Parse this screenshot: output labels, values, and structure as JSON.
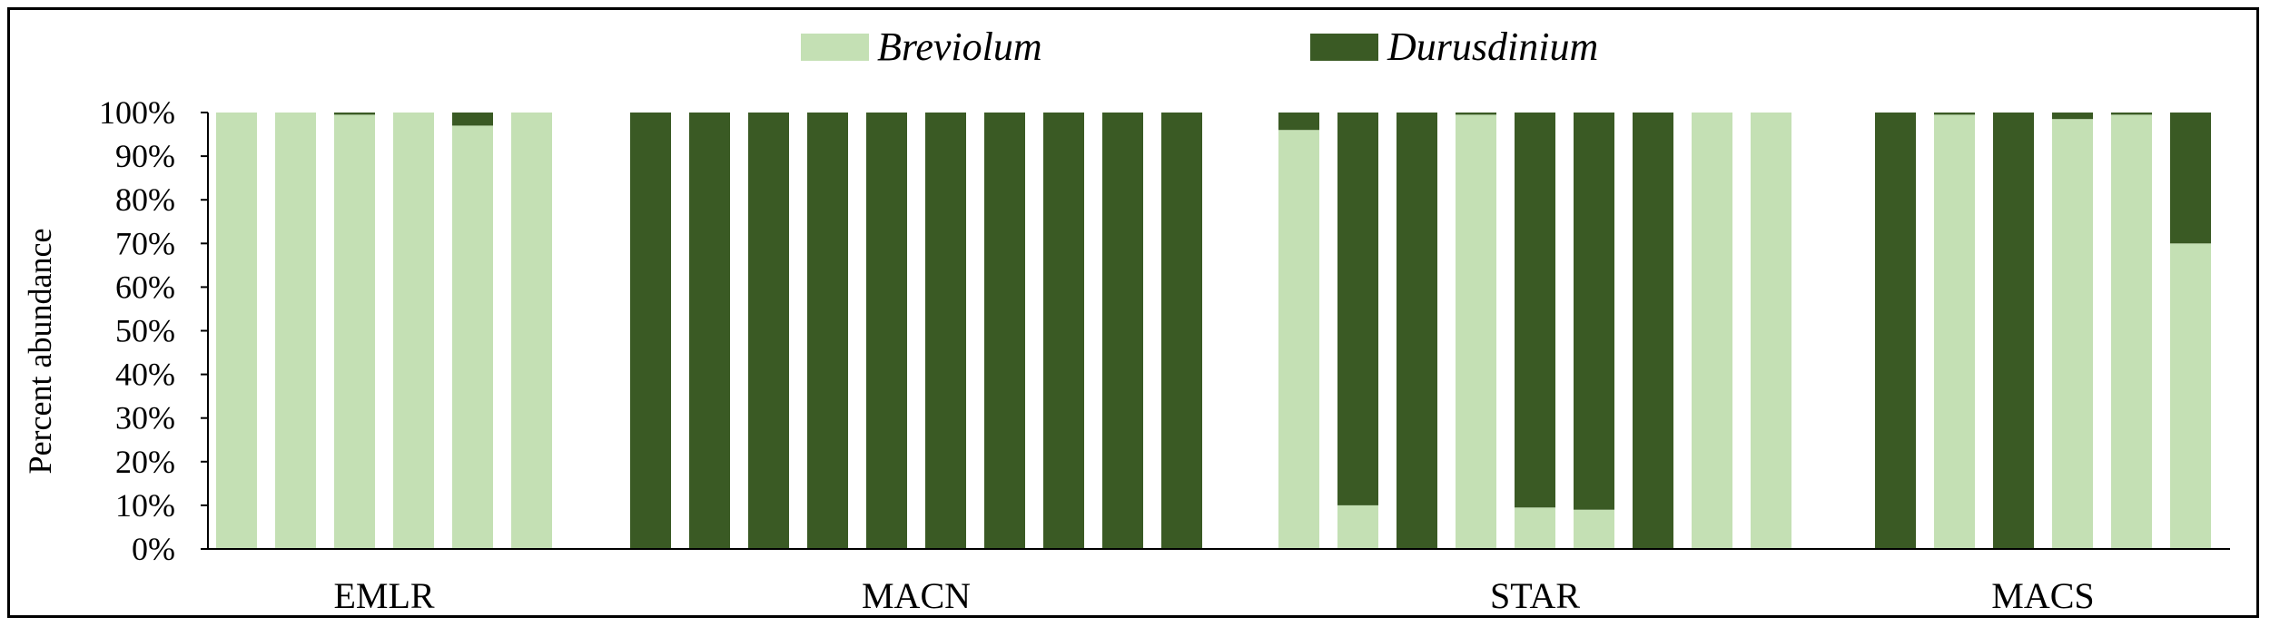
{
  "chart_data": {
    "type": "bar",
    "stacked": true,
    "ylabel": "Percent abundance",
    "ylim": [
      0,
      100
    ],
    "yticks": [
      "0%",
      "10%",
      "20%",
      "30%",
      "40%",
      "50%",
      "60%",
      "70%",
      "80%",
      "90%",
      "100%"
    ],
    "legend_position": "top-center",
    "colors": {
      "Breviolum": "#c4e0b4",
      "Durusdinium": "#3a5a24"
    },
    "groups": [
      {
        "label": "EMLR",
        "breviolum": [
          100,
          100,
          99.5,
          100,
          97,
          100
        ]
      },
      {
        "label": "MACN",
        "breviolum": [
          0,
          0,
          0,
          0,
          0,
          0,
          0,
          0,
          0,
          0
        ]
      },
      {
        "label": "STAR",
        "breviolum": [
          96,
          10,
          0,
          99.5,
          9.5,
          9,
          0,
          100,
          100
        ]
      },
      {
        "label": "MACS",
        "breviolum": [
          0,
          99.5,
          0,
          98.5,
          99.5,
          70
        ]
      }
    ],
    "series": [
      {
        "name": "Breviolum",
        "color": "#c4e0b4"
      },
      {
        "name": "Durusdinium",
        "color": "#3a5a24"
      }
    ]
  }
}
